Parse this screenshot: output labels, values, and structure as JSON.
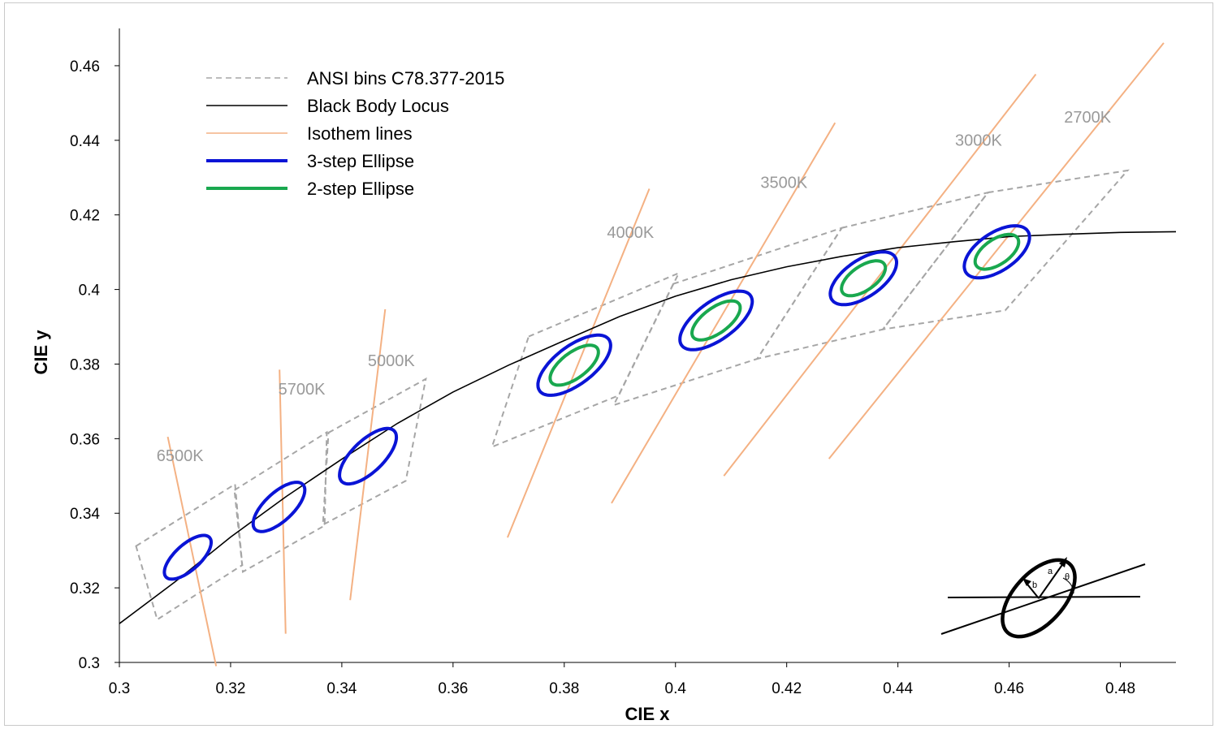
{
  "chart_data": {
    "type": "line",
    "xlabel": "CIE x",
    "ylabel": "CIE y",
    "xlim": [
      0.3,
      0.49
    ],
    "ylim": [
      0.3,
      0.47
    ],
    "grid": false,
    "legend_position": "top-left",
    "x_ticks": [
      "0.3",
      "0.32",
      "0.34",
      "0.36",
      "0.38",
      "0.4",
      "0.42",
      "0.44",
      "0.46",
      "0.48"
    ],
    "y_ticks": [
      "0.3",
      "0.32",
      "0.34",
      "0.36",
      "0.38",
      "0.4",
      "0.42",
      "0.44",
      "0.46"
    ],
    "colors": {
      "ansi": "#a6a6a6",
      "locus": "#000000",
      "isotherm": "#f4b183",
      "ellipse3": "#0a14d6",
      "ellipse2": "#19a84f",
      "cct_label": "#9a9a9a"
    },
    "legend": [
      {
        "key": "ansi",
        "label": "ANSI bins C78.377-2015",
        "style": "dashed"
      },
      {
        "key": "locus",
        "label": "Black Body Locus",
        "style": "solid"
      },
      {
        "key": "isotherm",
        "label": "Isothem lines",
        "style": "solid"
      },
      {
        "key": "ellipse3",
        "label": "3-step Ellipse",
        "style": "thick"
      },
      {
        "key": "ellipse2",
        "label": "2-step Ellipse",
        "style": "thick"
      }
    ],
    "black_body_locus": [
      [
        0.3,
        0.3104
      ],
      [
        0.31,
        0.3216
      ],
      [
        0.32,
        0.3336
      ],
      [
        0.33,
        0.3445
      ],
      [
        0.34,
        0.3545
      ],
      [
        0.35,
        0.3641
      ],
      [
        0.36,
        0.3725
      ],
      [
        0.37,
        0.3797
      ],
      [
        0.38,
        0.3863
      ],
      [
        0.39,
        0.3928
      ],
      [
        0.4,
        0.3982
      ],
      [
        0.41,
        0.4026
      ],
      [
        0.42,
        0.4061
      ],
      [
        0.43,
        0.4089
      ],
      [
        0.44,
        0.4112
      ],
      [
        0.45,
        0.4128
      ],
      [
        0.46,
        0.4142
      ],
      [
        0.47,
        0.4148
      ],
      [
        0.48,
        0.4153
      ],
      [
        0.49,
        0.4155
      ]
    ],
    "isotherm_lines": [
      {
        "label": "6500K",
        "start": [
          0.3174,
          0.299
        ],
        "end": [
          0.3087,
          0.3605
        ],
        "label_at": [
          0.3109,
          0.354
        ]
      },
      {
        "label": "5700K",
        "start": [
          0.3299,
          0.3077
        ],
        "end": [
          0.3288,
          0.3785
        ],
        "label_at": [
          0.3328,
          0.3718
        ]
      },
      {
        "label": "5000K",
        "start": [
          0.3415,
          0.3167
        ],
        "end": [
          0.3478,
          0.3947
        ],
        "label_at": [
          0.3489,
          0.3795
        ]
      },
      {
        "label": "4000K",
        "start": [
          0.3698,
          0.3335
        ],
        "end": [
          0.3953,
          0.427
        ],
        "label_at": [
          0.3919,
          0.4138
        ]
      },
      {
        "label": "3500K",
        "start": [
          0.3885,
          0.3427
        ],
        "end": [
          0.4287,
          0.4447
        ],
        "label_at": [
          0.4195,
          0.4272
        ]
      },
      {
        "label": "3000K",
        "start": [
          0.4087,
          0.35
        ],
        "end": [
          0.4648,
          0.4577
        ],
        "label_at": [
          0.4545,
          0.4386
        ]
      },
      {
        "label": "2700K",
        "start": [
          0.4276,
          0.3546
        ],
        "end": [
          0.4878,
          0.4661
        ],
        "label_at": [
          0.4741,
          0.4448
        ]
      }
    ],
    "ansi_bins": [
      {
        "cct": "6500K",
        "corners": [
          [
            0.303,
            0.3312
          ],
          [
            0.3208,
            0.3478
          ],
          [
            0.3221,
            0.3261
          ],
          [
            0.3068,
            0.3115
          ]
        ]
      },
      {
        "cct": "5700K",
        "corners": [
          [
            0.3207,
            0.3462
          ],
          [
            0.3373,
            0.3617
          ],
          [
            0.3369,
            0.3367
          ],
          [
            0.3222,
            0.3243
          ]
        ]
      },
      {
        "cct": "5000K",
        "corners": [
          [
            0.3376,
            0.3616
          ],
          [
            0.3551,
            0.376
          ],
          [
            0.3515,
            0.3487
          ],
          [
            0.3366,
            0.3369
          ]
        ]
      },
      {
        "cct": "4000K",
        "corners": [
          [
            0.3736,
            0.3874
          ],
          [
            0.4006,
            0.4044
          ],
          [
            0.3898,
            0.3716
          ],
          [
            0.367,
            0.3578
          ]
        ]
      },
      {
        "cct": "3500K",
        "corners": [
          [
            0.3996,
            0.4015
          ],
          [
            0.4299,
            0.4165
          ],
          [
            0.4147,
            0.3814
          ],
          [
            0.3889,
            0.369
          ]
        ]
      },
      {
        "cct": "3000K",
        "corners": [
          [
            0.4299,
            0.4165
          ],
          [
            0.4562,
            0.426
          ],
          [
            0.4373,
            0.3893
          ],
          [
            0.4147,
            0.3814
          ]
        ]
      },
      {
        "cct": "2700K",
        "corners": [
          [
            0.4562,
            0.426
          ],
          [
            0.4813,
            0.4319
          ],
          [
            0.4593,
            0.3944
          ],
          [
            0.4373,
            0.3893
          ]
        ]
      }
    ],
    "ellipses_3step": [
      {
        "cct": "6500K",
        "center": [
          0.3123,
          0.3282
        ],
        "a": 0.0067,
        "b": 0.0027,
        "theta_deg": 58.2
      },
      {
        "cct": "5700K",
        "center": [
          0.3287,
          0.3417
        ],
        "a": 0.0075,
        "b": 0.003,
        "theta_deg": 58.9
      },
      {
        "cct": "5000K",
        "center": [
          0.3447,
          0.3553
        ],
        "a": 0.0084,
        "b": 0.0033,
        "theta_deg": 59.6
      },
      {
        "cct": "4000K",
        "center": [
          0.3818,
          0.3797
        ],
        "a": 0.0095,
        "b": 0.0042,
        "theta_deg": 54.0
      },
      {
        "cct": "3500K",
        "center": [
          0.4073,
          0.3917
        ],
        "a": 0.0093,
        "b": 0.0042,
        "theta_deg": 53.2
      },
      {
        "cct": "3000K",
        "center": [
          0.4338,
          0.403
        ],
        "a": 0.0083,
        "b": 0.0041,
        "theta_deg": 53.1
      },
      {
        "cct": "2700K",
        "center": [
          0.4578,
          0.4101
        ],
        "a": 0.0081,
        "b": 0.0042,
        "theta_deg": 53.7
      }
    ],
    "ellipses_2step": [
      {
        "cct": "4000K",
        "center": [
          0.3818,
          0.3797
        ],
        "a": 0.0063,
        "b": 0.0028,
        "theta_deg": 54.0
      },
      {
        "cct": "3500K",
        "center": [
          0.4073,
          0.3917
        ],
        "a": 0.0062,
        "b": 0.0028,
        "theta_deg": 53.2
      },
      {
        "cct": "3000K",
        "center": [
          0.4338,
          0.403
        ],
        "a": 0.0055,
        "b": 0.0027,
        "theta_deg": 53.1
      },
      {
        "cct": "2700K",
        "center": [
          0.4578,
          0.4101
        ],
        "a": 0.0054,
        "b": 0.0028,
        "theta_deg": 53.7
      }
    ],
    "inset": {
      "labels": [
        "a",
        "b",
        "θ"
      ]
    }
  }
}
